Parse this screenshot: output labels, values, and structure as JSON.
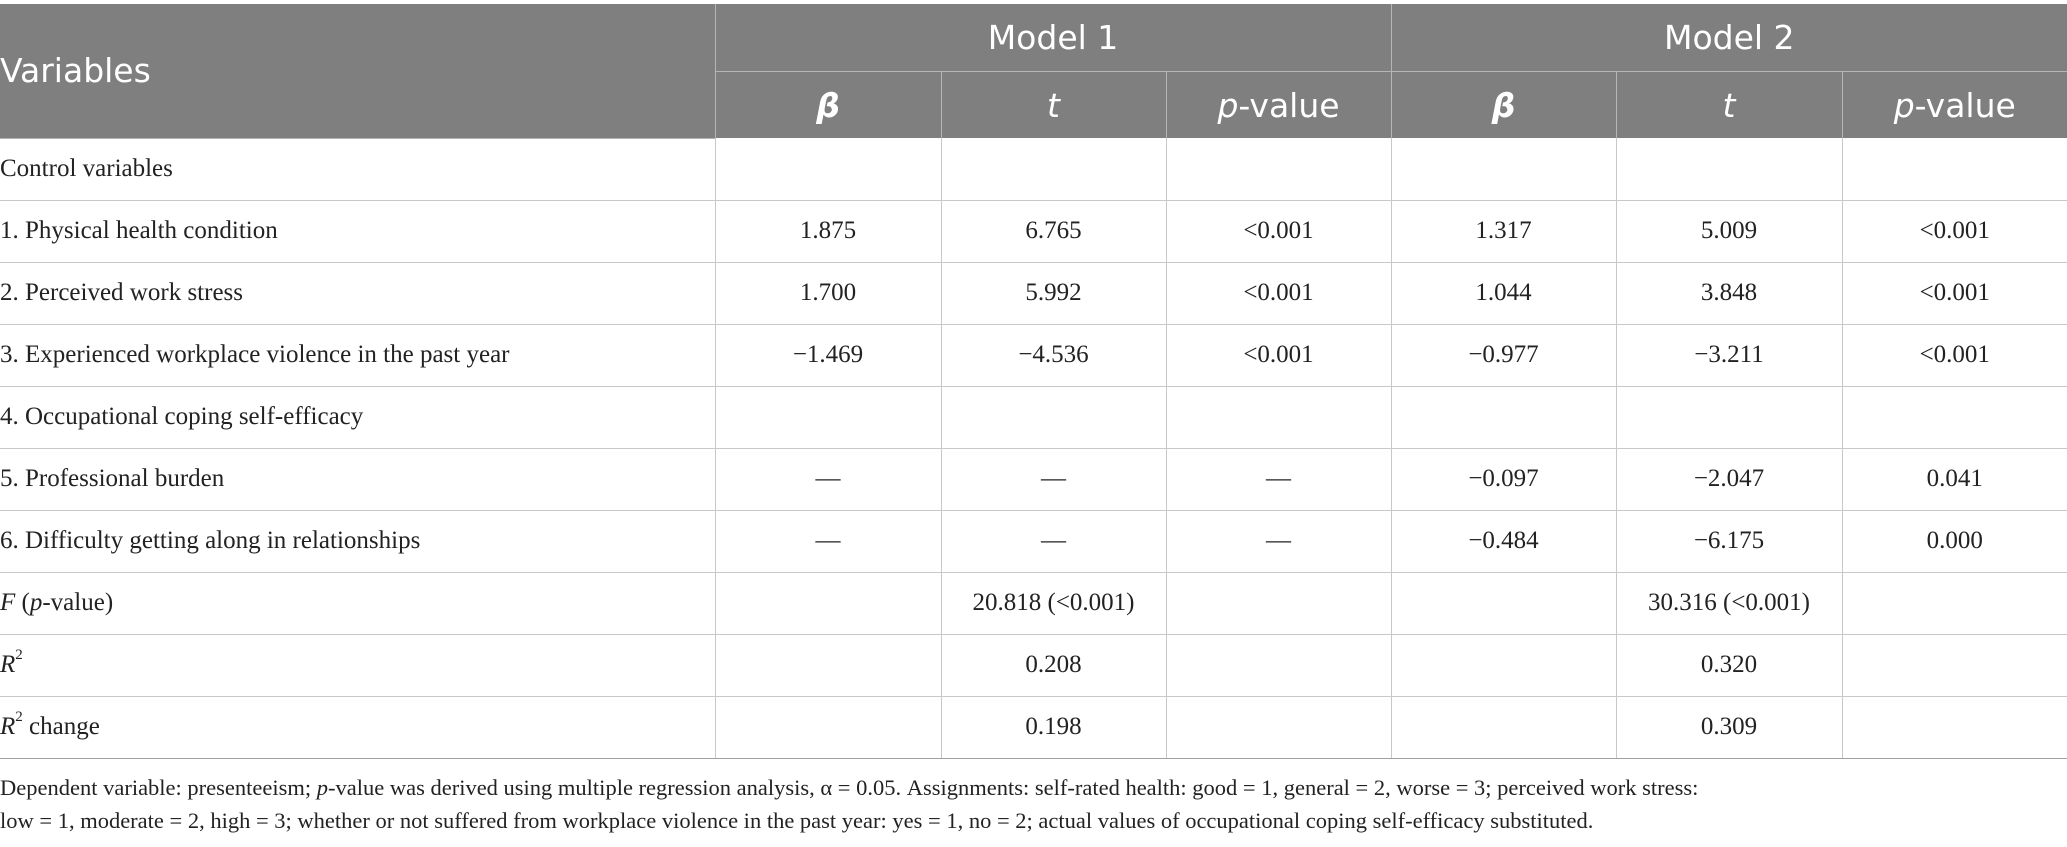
{
  "header": {
    "variables": "Variables",
    "model1": "Model 1",
    "model2": "Model 2",
    "beta": "β",
    "t": "t",
    "p_italic": "p",
    "p_suffix": "-value"
  },
  "rows": [
    {
      "label": "Control variables",
      "m1": [
        "",
        "",
        ""
      ],
      "m2": [
        "",
        "",
        ""
      ]
    },
    {
      "label": "1. Physical health condition",
      "m1": [
        "1.875",
        "6.765",
        "<0.001"
      ],
      "m2": [
        "1.317",
        "5.009",
        "<0.001"
      ]
    },
    {
      "label": "2. Perceived work stress",
      "m1": [
        "1.700",
        "5.992",
        "<0.001"
      ],
      "m2": [
        "1.044",
        "3.848",
        "<0.001"
      ]
    },
    {
      "label": "3. Experienced workplace violence in the past year",
      "m1": [
        "−1.469",
        "−4.536",
        "<0.001"
      ],
      "m2": [
        "−0.977",
        "−3.211",
        "<0.001"
      ]
    },
    {
      "label": "4. Occupational coping self-efficacy",
      "m1": [
        "",
        "",
        ""
      ],
      "m2": [
        "",
        "",
        ""
      ]
    },
    {
      "label": "5. Professional burden",
      "m1": [
        "—",
        "—",
        "—"
      ],
      "m2": [
        "−0.097",
        "−2.047",
        "0.041"
      ]
    },
    {
      "label": "6. Difficulty getting along in relationships",
      "m1": [
        "—",
        "—",
        "—"
      ],
      "m2": [
        "−0.484",
        "−6.175",
        "0.000"
      ]
    }
  ],
  "stats": {
    "f_label_f": "F",
    "f_label_open": " (",
    "f_label_p": "p",
    "f_label_close": "-value)",
    "f_m1": "20.818 (<0.001)",
    "f_m2": "30.316 (<0.001)",
    "r2_label": "R",
    "r2_sup": "2",
    "r2_m1": "0.208",
    "r2_m2": "0.320",
    "r2c_label": "R",
    "r2c_sup": "2",
    "r2c_suffix": " change",
    "r2c_m1": "0.198",
    "r2c_m2": "0.309"
  },
  "note": {
    "line1a": "Dependent variable: presenteeism; ",
    "line1p": "p",
    "line1b": "-value was derived using multiple regression analysis, α = 0.05. Assignments: self-rated health: good = 1, general = 2, worse = 3; perceived work stress:",
    "line2": "low = 1, moderate = 2, high = 3; whether or not suffered from workplace violence in the past year: yes = 1, no = 2; actual values of occupational coping self-efficacy substituted."
  }
}
